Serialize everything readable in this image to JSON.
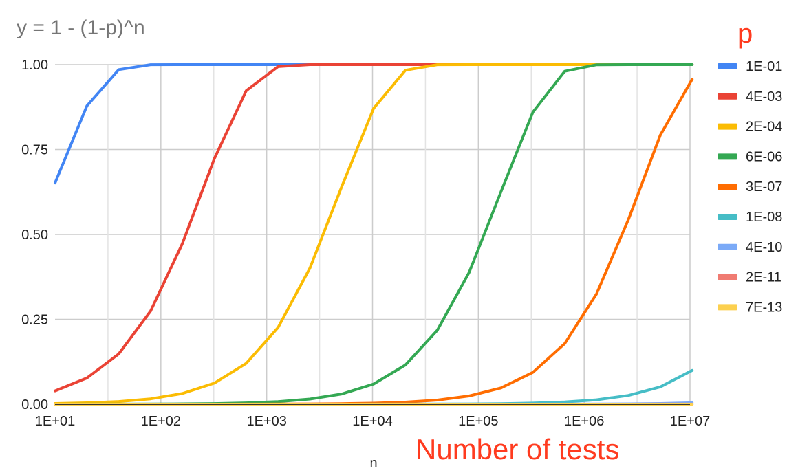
{
  "chart_data": {
    "type": "line",
    "title": "y = 1 - (1-p)^n",
    "xlabel": "n",
    "annotation": "Number of tests",
    "legend_title": "p",
    "x_scale": "log10",
    "xlim": [
      10,
      10000000
    ],
    "ylim": [
      0,
      1
    ],
    "grid": true,
    "legend_position": "right",
    "x_ticks": [
      "1E+01",
      "1E+02",
      "1E+03",
      "1E+04",
      "1E+05",
      "1E+06",
      "1E+07"
    ],
    "y_ticks": [
      "0.00",
      "0.25",
      "0.50",
      "0.75",
      "1.00"
    ],
    "x": [
      10,
      20,
      40,
      80,
      160,
      320,
      640,
      1280,
      2560,
      5120,
      10240,
      20480,
      40960,
      81920,
      163840,
      327680,
      655360,
      1310720,
      2621440,
      5242880,
      10485760
    ],
    "series": [
      {
        "name": "1E-01",
        "p": 0.1,
        "color": "#4285F4"
      },
      {
        "name": "4E-03",
        "p": 0.004,
        "color": "#EA4335"
      },
      {
        "name": "2E-04",
        "p": 0.0002,
        "color": "#FBBC04"
      },
      {
        "name": "6E-06",
        "p": 6e-06,
        "color": "#34A853"
      },
      {
        "name": "3E-07",
        "p": 3e-07,
        "color": "#FF6D01"
      },
      {
        "name": "1E-08",
        "p": 1e-08,
        "color": "#46BDC6"
      },
      {
        "name": "4E-10",
        "p": 4e-10,
        "color": "#7BAAF7"
      },
      {
        "name": "2E-11",
        "p": 2e-11,
        "color": "#F07B72"
      },
      {
        "name": "7E-13",
        "p": 7e-13,
        "color": "#FCD04F"
      }
    ]
  }
}
